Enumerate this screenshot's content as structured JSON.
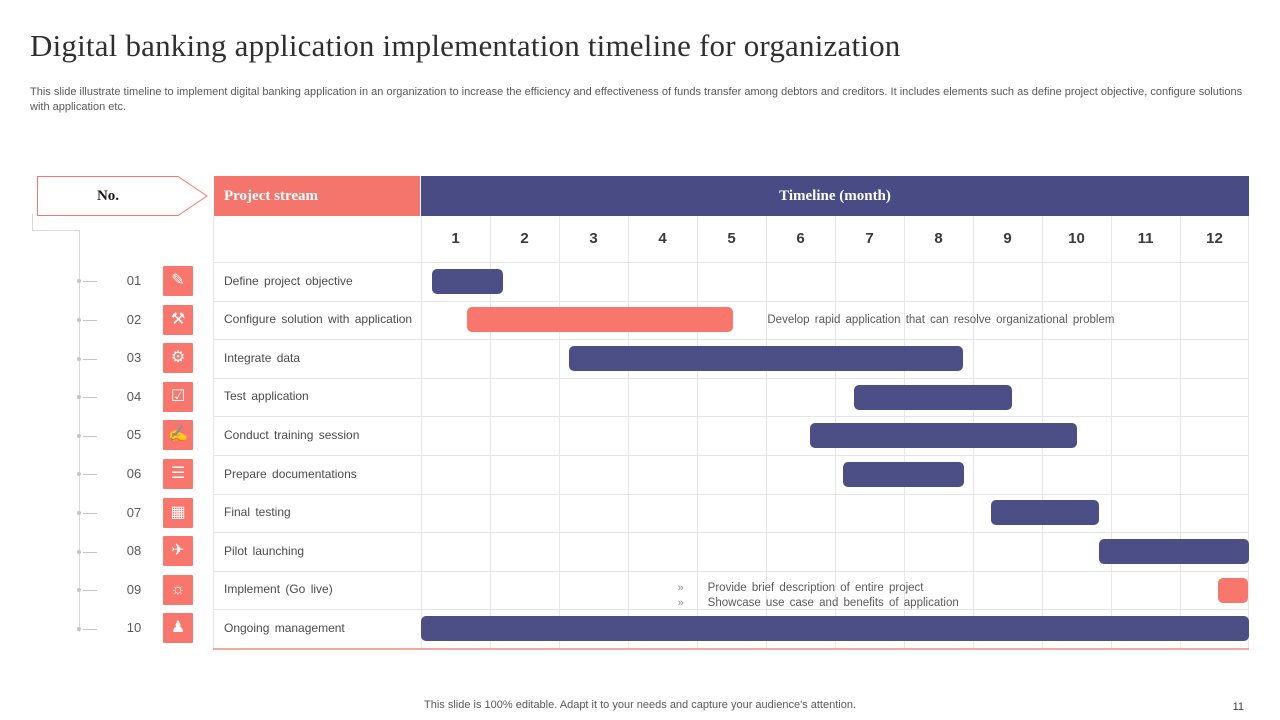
{
  "slide": {
    "title": "Digital banking application implementation timeline for organization",
    "subtitle": "This slide illustrate timeline to implement digital banking application in an organization to increase the efficiency and effectiveness of funds transfer among debtors and creditors. It includes elements such as define project objective, configure solutions with application etc.",
    "footer": "This slide is 100% editable. Adapt it to your needs and capture your audience's attention.",
    "page_number": "11"
  },
  "table": {
    "no_header": "No.",
    "stream_header": "Project stream",
    "timeline_header": "Timeline (month)"
  },
  "colors": {
    "coral": "#F8766C",
    "header_coral": "#F4756C",
    "purple": "#4C4E86",
    "header_purple": "#494B85",
    "table_accent_line": "#F2A79F",
    "grid_line": "#E7E7E7",
    "connector_line": "#D9D9D9"
  },
  "chart_data": {
    "type": "bar",
    "subtype": "gantt",
    "title": "Timeline (month)",
    "xlabel": "Timeline (month)",
    "ylabel": "Project stream",
    "x_ticks": [
      "1",
      "2",
      "3",
      "4",
      "5",
      "6",
      "7",
      "8",
      "9",
      "10",
      "11",
      "12"
    ],
    "x_range": [
      1,
      13
    ],
    "grid": true,
    "bullet_marker": "»",
    "tasks": [
      {
        "no": "01",
        "name": "Define project objective",
        "icon": "scroll-pen-icon",
        "glyph": "✎",
        "color": "purple",
        "start": 1.16,
        "end": 2.19
      },
      {
        "no": "02",
        "name": "Configure solution with application",
        "icon": "wrench-gear-icon",
        "glyph": "⚒",
        "color": "coral",
        "start": 1.67,
        "end": 5.52,
        "annotation": "Develop rapid application that can resolve organizational problem",
        "annotation_x": 6.02
      },
      {
        "no": "03",
        "name": "Integrate data",
        "icon": "gears-icon",
        "glyph": "⚙",
        "color": "purple",
        "start": 3.14,
        "end": 8.85
      },
      {
        "no": "04",
        "name": "Test application",
        "icon": "checklist-icon",
        "glyph": "☑",
        "color": "purple",
        "start": 7.28,
        "end": 9.57
      },
      {
        "no": "05",
        "name": "Conduct training session",
        "icon": "training-presenter-icon",
        "glyph": "✍",
        "color": "purple",
        "start": 6.64,
        "end": 10.51
      },
      {
        "no": "06",
        "name": "Prepare documentations",
        "icon": "document-gear-icon",
        "glyph": "☰",
        "color": "purple",
        "start": 7.11,
        "end": 8.87
      },
      {
        "no": "07",
        "name": "Final testing",
        "icon": "table-grid-icon",
        "glyph": "▦",
        "color": "purple",
        "start": 9.26,
        "end": 10.82
      },
      {
        "no": "08",
        "name": "Pilot launching",
        "icon": "launch-icon",
        "glyph": "✈",
        "color": "purple",
        "start": 10.82,
        "end": 13.0
      },
      {
        "no": "09",
        "name": "Implement (Go live)",
        "icon": "bulb-idea-icon",
        "glyph": "☼",
        "color": "coral",
        "start": 12.55,
        "end": 12.99,
        "bullets": [
          "Provide brief description of entire project",
          "Showcase use case and benefits of application"
        ],
        "bullets_x": 4.72
      },
      {
        "no": "10",
        "name": "Ongoing management",
        "icon": "person-gear-icon",
        "glyph": "♟",
        "color": "purple",
        "start": 1.0,
        "end": 13.0
      }
    ]
  }
}
